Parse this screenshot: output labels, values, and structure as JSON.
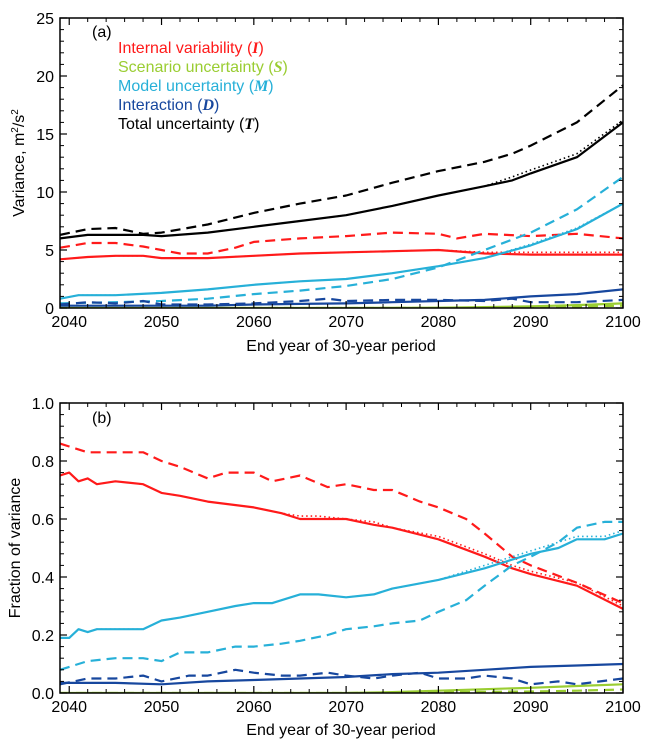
{
  "chart_data": [
    {
      "type": "line",
      "panel_label": "(a)",
      "xlabel": "End year of 30-year period",
      "ylabel_main": "Variance, m",
      "ylabel_sup1": "2",
      "ylabel_mid": "/s",
      "ylabel_sup2": "2",
      "xlim": [
        2039,
        2100
      ],
      "ylim": [
        0,
        25
      ],
      "xticks": [
        2040,
        2050,
        2060,
        2070,
        2080,
        2090,
        2100
      ],
      "yticks": [
        0,
        5,
        10,
        15,
        20,
        25
      ],
      "legend": [
        {
          "name": "Internal variability (",
          "symbol": "I",
          "close": ")",
          "color": "#ff1a1a"
        },
        {
          "name": "Scenario uncertainty (",
          "symbol": "S",
          "close": ")",
          "color": "#9acd32"
        },
        {
          "name": "Model uncertainty (",
          "symbol": "M",
          "close": ")",
          "color": "#27b0d8"
        },
        {
          "name": "Interaction (",
          "symbol": "D",
          "close": ")",
          "color": "#17479e"
        },
        {
          "name": "Total uncertainty (",
          "symbol": "T",
          "close": ")",
          "color": "#000000"
        }
      ],
      "series": [
        {
          "key": "I",
          "style": "solid",
          "color": "#ff1a1a",
          "x": [
            2039,
            2042,
            2045,
            2048,
            2050,
            2055,
            2060,
            2065,
            2070,
            2075,
            2080,
            2085,
            2090,
            2095,
            2100
          ],
          "y": [
            4.2,
            4.4,
            4.5,
            4.5,
            4.3,
            4.3,
            4.5,
            4.7,
            4.8,
            4.9,
            5.0,
            4.7,
            4.6,
            4.6,
            4.6
          ]
        },
        {
          "key": "I",
          "style": "dotted",
          "color": "#ff1a1a",
          "x": [
            2039,
            2042,
            2045,
            2048,
            2050,
            2055,
            2060,
            2065,
            2070,
            2075,
            2080,
            2085,
            2090,
            2095,
            2100
          ],
          "y": [
            4.2,
            4.4,
            4.5,
            4.5,
            4.3,
            4.3,
            4.5,
            4.7,
            4.8,
            4.9,
            5.0,
            4.8,
            4.8,
            4.8,
            4.8
          ]
        },
        {
          "key": "I",
          "style": "dashed",
          "color": "#ff1a1a",
          "x": [
            2039,
            2042,
            2045,
            2048,
            2050,
            2052,
            2055,
            2058,
            2060,
            2065,
            2070,
            2075,
            2080,
            2082,
            2085,
            2090,
            2095,
            2100
          ],
          "y": [
            5.2,
            5.6,
            5.6,
            5.3,
            5.0,
            4.7,
            4.7,
            5.2,
            5.7,
            6.0,
            6.2,
            6.5,
            6.4,
            6.0,
            6.4,
            6.2,
            6.4,
            6.0
          ]
        },
        {
          "key": "S",
          "style": "solid",
          "color": "#9acd32",
          "x": [
            2039,
            2050,
            2060,
            2070,
            2080,
            2085,
            2090,
            2095,
            2100
          ],
          "y": [
            0.0,
            0.0,
            0.0,
            0.0,
            0.03,
            0.08,
            0.15,
            0.25,
            0.4
          ]
        },
        {
          "key": "S",
          "style": "dashed",
          "color": "#9acd32",
          "x": [
            2039,
            2050,
            2060,
            2070,
            2080,
            2090,
            2095,
            2100
          ],
          "y": [
            0.0,
            0.0,
            0.0,
            0.0,
            0.0,
            0.05,
            0.1,
            0.2
          ]
        },
        {
          "key": "M",
          "style": "solid",
          "color": "#27b0d8",
          "x": [
            2039,
            2041,
            2045,
            2050,
            2055,
            2060,
            2065,
            2070,
            2075,
            2080,
            2085,
            2090,
            2095,
            2100
          ],
          "y": [
            0.8,
            1.1,
            1.1,
            1.3,
            1.6,
            2.0,
            2.3,
            2.5,
            3.0,
            3.6,
            4.3,
            5.4,
            6.8,
            9.0
          ]
        },
        {
          "key": "M",
          "style": "dotted",
          "color": "#27b0d8",
          "x": [
            2039,
            2041,
            2045,
            2050,
            2055,
            2060,
            2065,
            2070,
            2075,
            2080,
            2085,
            2090,
            2095,
            2100
          ],
          "y": [
            0.8,
            1.1,
            1.1,
            1.3,
            1.6,
            2.0,
            2.3,
            2.5,
            3.0,
            3.6,
            4.3,
            5.5,
            6.9,
            9.0
          ]
        },
        {
          "key": "M",
          "style": "dashed",
          "color": "#27b0d8",
          "x": [
            2039,
            2045,
            2050,
            2055,
            2060,
            2065,
            2070,
            2075,
            2080,
            2085,
            2090,
            2095,
            2100
          ],
          "y": [
            0.4,
            0.5,
            0.6,
            0.8,
            1.2,
            1.5,
            1.9,
            2.5,
            3.5,
            5.0,
            6.5,
            8.5,
            11.3
          ]
        },
        {
          "key": "D",
          "style": "solid",
          "color": "#17479e",
          "x": [
            2039,
            2045,
            2050,
            2055,
            2060,
            2065,
            2070,
            2075,
            2080,
            2085,
            2090,
            2095,
            2100
          ],
          "y": [
            0.2,
            0.2,
            0.2,
            0.2,
            0.3,
            0.35,
            0.4,
            0.5,
            0.6,
            0.7,
            1.0,
            1.2,
            1.6
          ]
        },
        {
          "key": "D",
          "style": "dashed",
          "color": "#17479e",
          "x": [
            2039,
            2042,
            2045,
            2048,
            2050,
            2055,
            2060,
            2065,
            2068,
            2070,
            2075,
            2080,
            2085,
            2088,
            2090,
            2095,
            2100
          ],
          "y": [
            0.3,
            0.5,
            0.4,
            0.6,
            0.3,
            0.3,
            0.4,
            0.6,
            0.8,
            0.6,
            0.7,
            0.7,
            0.6,
            0.8,
            0.5,
            0.5,
            0.7
          ]
        },
        {
          "key": "T",
          "style": "solid",
          "color": "#000000",
          "x": [
            2039,
            2042,
            2045,
            2048,
            2050,
            2055,
            2060,
            2065,
            2070,
            2075,
            2080,
            2085,
            2088,
            2090,
            2095,
            2100
          ],
          "y": [
            6.0,
            6.3,
            6.3,
            6.3,
            6.2,
            6.5,
            7.0,
            7.5,
            8.0,
            8.8,
            9.7,
            10.5,
            11.0,
            11.6,
            13.0,
            16.0
          ]
        },
        {
          "key": "T",
          "style": "dotted",
          "color": "#000000",
          "x": [
            2039,
            2042,
            2045,
            2048,
            2050,
            2055,
            2060,
            2065,
            2070,
            2075,
            2080,
            2085,
            2088,
            2090,
            2095,
            2100
          ],
          "y": [
            6.0,
            6.3,
            6.3,
            6.3,
            6.2,
            6.5,
            7.0,
            7.5,
            8.0,
            8.8,
            9.7,
            10.5,
            11.3,
            11.9,
            13.3,
            16.2
          ]
        },
        {
          "key": "T",
          "style": "dashed",
          "color": "#000000",
          "x": [
            2039,
            2042,
            2045,
            2048,
            2050,
            2055,
            2060,
            2065,
            2070,
            2075,
            2080,
            2085,
            2088,
            2090,
            2095,
            2100
          ],
          "y": [
            6.3,
            6.8,
            6.9,
            6.4,
            6.5,
            7.2,
            8.2,
            9.0,
            9.7,
            10.8,
            11.8,
            12.6,
            13.3,
            14.0,
            16.0,
            19.2
          ]
        }
      ]
    },
    {
      "type": "line",
      "panel_label": "(b)",
      "xlabel": "End year of 30-year period",
      "ylabel": "Fraction of variance",
      "xlim": [
        2039,
        2100
      ],
      "ylim": [
        0,
        1.0
      ],
      "xticks": [
        2040,
        2050,
        2060,
        2070,
        2080,
        2090,
        2100
      ],
      "yticks": [
        0.0,
        0.2,
        0.4,
        0.6,
        0.8,
        1.0
      ],
      "ytick_labels": [
        "0.0",
        "0.2",
        "0.4",
        "0.6",
        "0.8",
        "1.0"
      ],
      "series": [
        {
          "key": "I",
          "style": "solid",
          "color": "#ff1a1a",
          "x": [
            2039,
            2040,
            2041,
            2042,
            2043,
            2045,
            2048,
            2050,
            2052,
            2055,
            2060,
            2063,
            2065,
            2067,
            2070,
            2073,
            2075,
            2080,
            2085,
            2088,
            2090,
            2095,
            2100
          ],
          "y": [
            0.75,
            0.76,
            0.73,
            0.74,
            0.72,
            0.73,
            0.72,
            0.69,
            0.68,
            0.66,
            0.64,
            0.62,
            0.6,
            0.6,
            0.6,
            0.58,
            0.57,
            0.53,
            0.47,
            0.43,
            0.41,
            0.37,
            0.29
          ]
        },
        {
          "key": "I",
          "style": "dotted",
          "color": "#ff1a1a",
          "x": [
            2039,
            2040,
            2041,
            2042,
            2043,
            2045,
            2048,
            2050,
            2052,
            2055,
            2060,
            2063,
            2065,
            2067,
            2070,
            2073,
            2075,
            2080,
            2085,
            2088,
            2090,
            2095,
            2100
          ],
          "y": [
            0.75,
            0.76,
            0.73,
            0.74,
            0.72,
            0.73,
            0.72,
            0.69,
            0.68,
            0.66,
            0.64,
            0.62,
            0.61,
            0.61,
            0.6,
            0.59,
            0.57,
            0.54,
            0.48,
            0.44,
            0.42,
            0.38,
            0.3
          ]
        },
        {
          "key": "I",
          "style": "dashed",
          "color": "#ff1a1a",
          "x": [
            2039,
            2040,
            2042,
            2045,
            2048,
            2050,
            2052,
            2055,
            2057,
            2060,
            2062,
            2065,
            2068,
            2070,
            2073,
            2075,
            2078,
            2080,
            2083,
            2085,
            2088,
            2090,
            2095,
            2100
          ],
          "y": [
            0.86,
            0.85,
            0.83,
            0.83,
            0.83,
            0.8,
            0.78,
            0.74,
            0.76,
            0.76,
            0.73,
            0.75,
            0.71,
            0.72,
            0.7,
            0.7,
            0.66,
            0.64,
            0.6,
            0.55,
            0.47,
            0.44,
            0.38,
            0.31
          ]
        },
        {
          "key": "S",
          "style": "solid",
          "color": "#9acd32",
          "x": [
            2039,
            2050,
            2060,
            2070,
            2075,
            2080,
            2085,
            2090,
            2095,
            2100
          ],
          "y": [
            0.0,
            0.0,
            0.0,
            0.0,
            0.003,
            0.008,
            0.013,
            0.018,
            0.024,
            0.03
          ]
        },
        {
          "key": "S",
          "style": "dashed",
          "color": "#9acd32",
          "x": [
            2039,
            2050,
            2060,
            2070,
            2080,
            2090,
            2095,
            2100
          ],
          "y": [
            0.0,
            0.0,
            0.0,
            0.0,
            0.003,
            0.005,
            0.008,
            0.012
          ]
        },
        {
          "key": "M",
          "style": "solid",
          "color": "#27b0d8",
          "x": [
            2039,
            2040,
            2041,
            2042,
            2043,
            2045,
            2048,
            2050,
            2052,
            2055,
            2058,
            2060,
            2062,
            2065,
            2067,
            2070,
            2073,
            2075,
            2080,
            2085,
            2088,
            2090,
            2093,
            2095,
            2098,
            2100
          ],
          "y": [
            0.19,
            0.19,
            0.22,
            0.21,
            0.22,
            0.22,
            0.22,
            0.25,
            0.26,
            0.28,
            0.3,
            0.31,
            0.31,
            0.34,
            0.34,
            0.33,
            0.34,
            0.36,
            0.39,
            0.43,
            0.46,
            0.48,
            0.5,
            0.53,
            0.53,
            0.55
          ]
        },
        {
          "key": "M",
          "style": "dotted",
          "color": "#27b0d8",
          "x": [
            2039,
            2040,
            2041,
            2042,
            2043,
            2045,
            2048,
            2050,
            2052,
            2055,
            2058,
            2060,
            2062,
            2065,
            2067,
            2070,
            2073,
            2075,
            2080,
            2085,
            2088,
            2090,
            2093,
            2095,
            2098,
            2100
          ],
          "y": [
            0.19,
            0.19,
            0.22,
            0.21,
            0.22,
            0.22,
            0.22,
            0.25,
            0.26,
            0.28,
            0.3,
            0.31,
            0.31,
            0.34,
            0.34,
            0.33,
            0.34,
            0.36,
            0.39,
            0.44,
            0.47,
            0.49,
            0.52,
            0.54,
            0.54,
            0.56
          ]
        },
        {
          "key": "M",
          "style": "dashed",
          "color": "#27b0d8",
          "x": [
            2039,
            2040,
            2042,
            2045,
            2048,
            2050,
            2052,
            2055,
            2058,
            2060,
            2063,
            2065,
            2068,
            2070,
            2073,
            2075,
            2078,
            2080,
            2083,
            2085,
            2088,
            2090,
            2093,
            2095,
            2098,
            2100
          ],
          "y": [
            0.08,
            0.09,
            0.11,
            0.12,
            0.12,
            0.11,
            0.14,
            0.14,
            0.16,
            0.16,
            0.17,
            0.18,
            0.2,
            0.22,
            0.23,
            0.24,
            0.25,
            0.28,
            0.32,
            0.37,
            0.44,
            0.47,
            0.52,
            0.57,
            0.59,
            0.59
          ]
        },
        {
          "key": "D",
          "style": "solid",
          "color": "#17479e",
          "x": [
            2039,
            2045,
            2050,
            2055,
            2060,
            2065,
            2070,
            2075,
            2080,
            2085,
            2090,
            2095,
            2100
          ],
          "y": [
            0.035,
            0.035,
            0.03,
            0.04,
            0.045,
            0.05,
            0.055,
            0.065,
            0.07,
            0.08,
            0.09,
            0.095,
            0.1
          ]
        },
        {
          "key": "D",
          "style": "dashed",
          "color": "#17479e",
          "x": [
            2039,
            2042,
            2045,
            2048,
            2050,
            2053,
            2055,
            2058,
            2060,
            2063,
            2065,
            2068,
            2070,
            2073,
            2075,
            2078,
            2080,
            2083,
            2085,
            2088,
            2090,
            2093,
            2095,
            2100
          ],
          "y": [
            0.03,
            0.05,
            0.05,
            0.06,
            0.04,
            0.06,
            0.06,
            0.08,
            0.07,
            0.06,
            0.06,
            0.07,
            0.06,
            0.05,
            0.06,
            0.07,
            0.05,
            0.05,
            0.06,
            0.05,
            0.03,
            0.04,
            0.03,
            0.05
          ]
        }
      ]
    }
  ]
}
